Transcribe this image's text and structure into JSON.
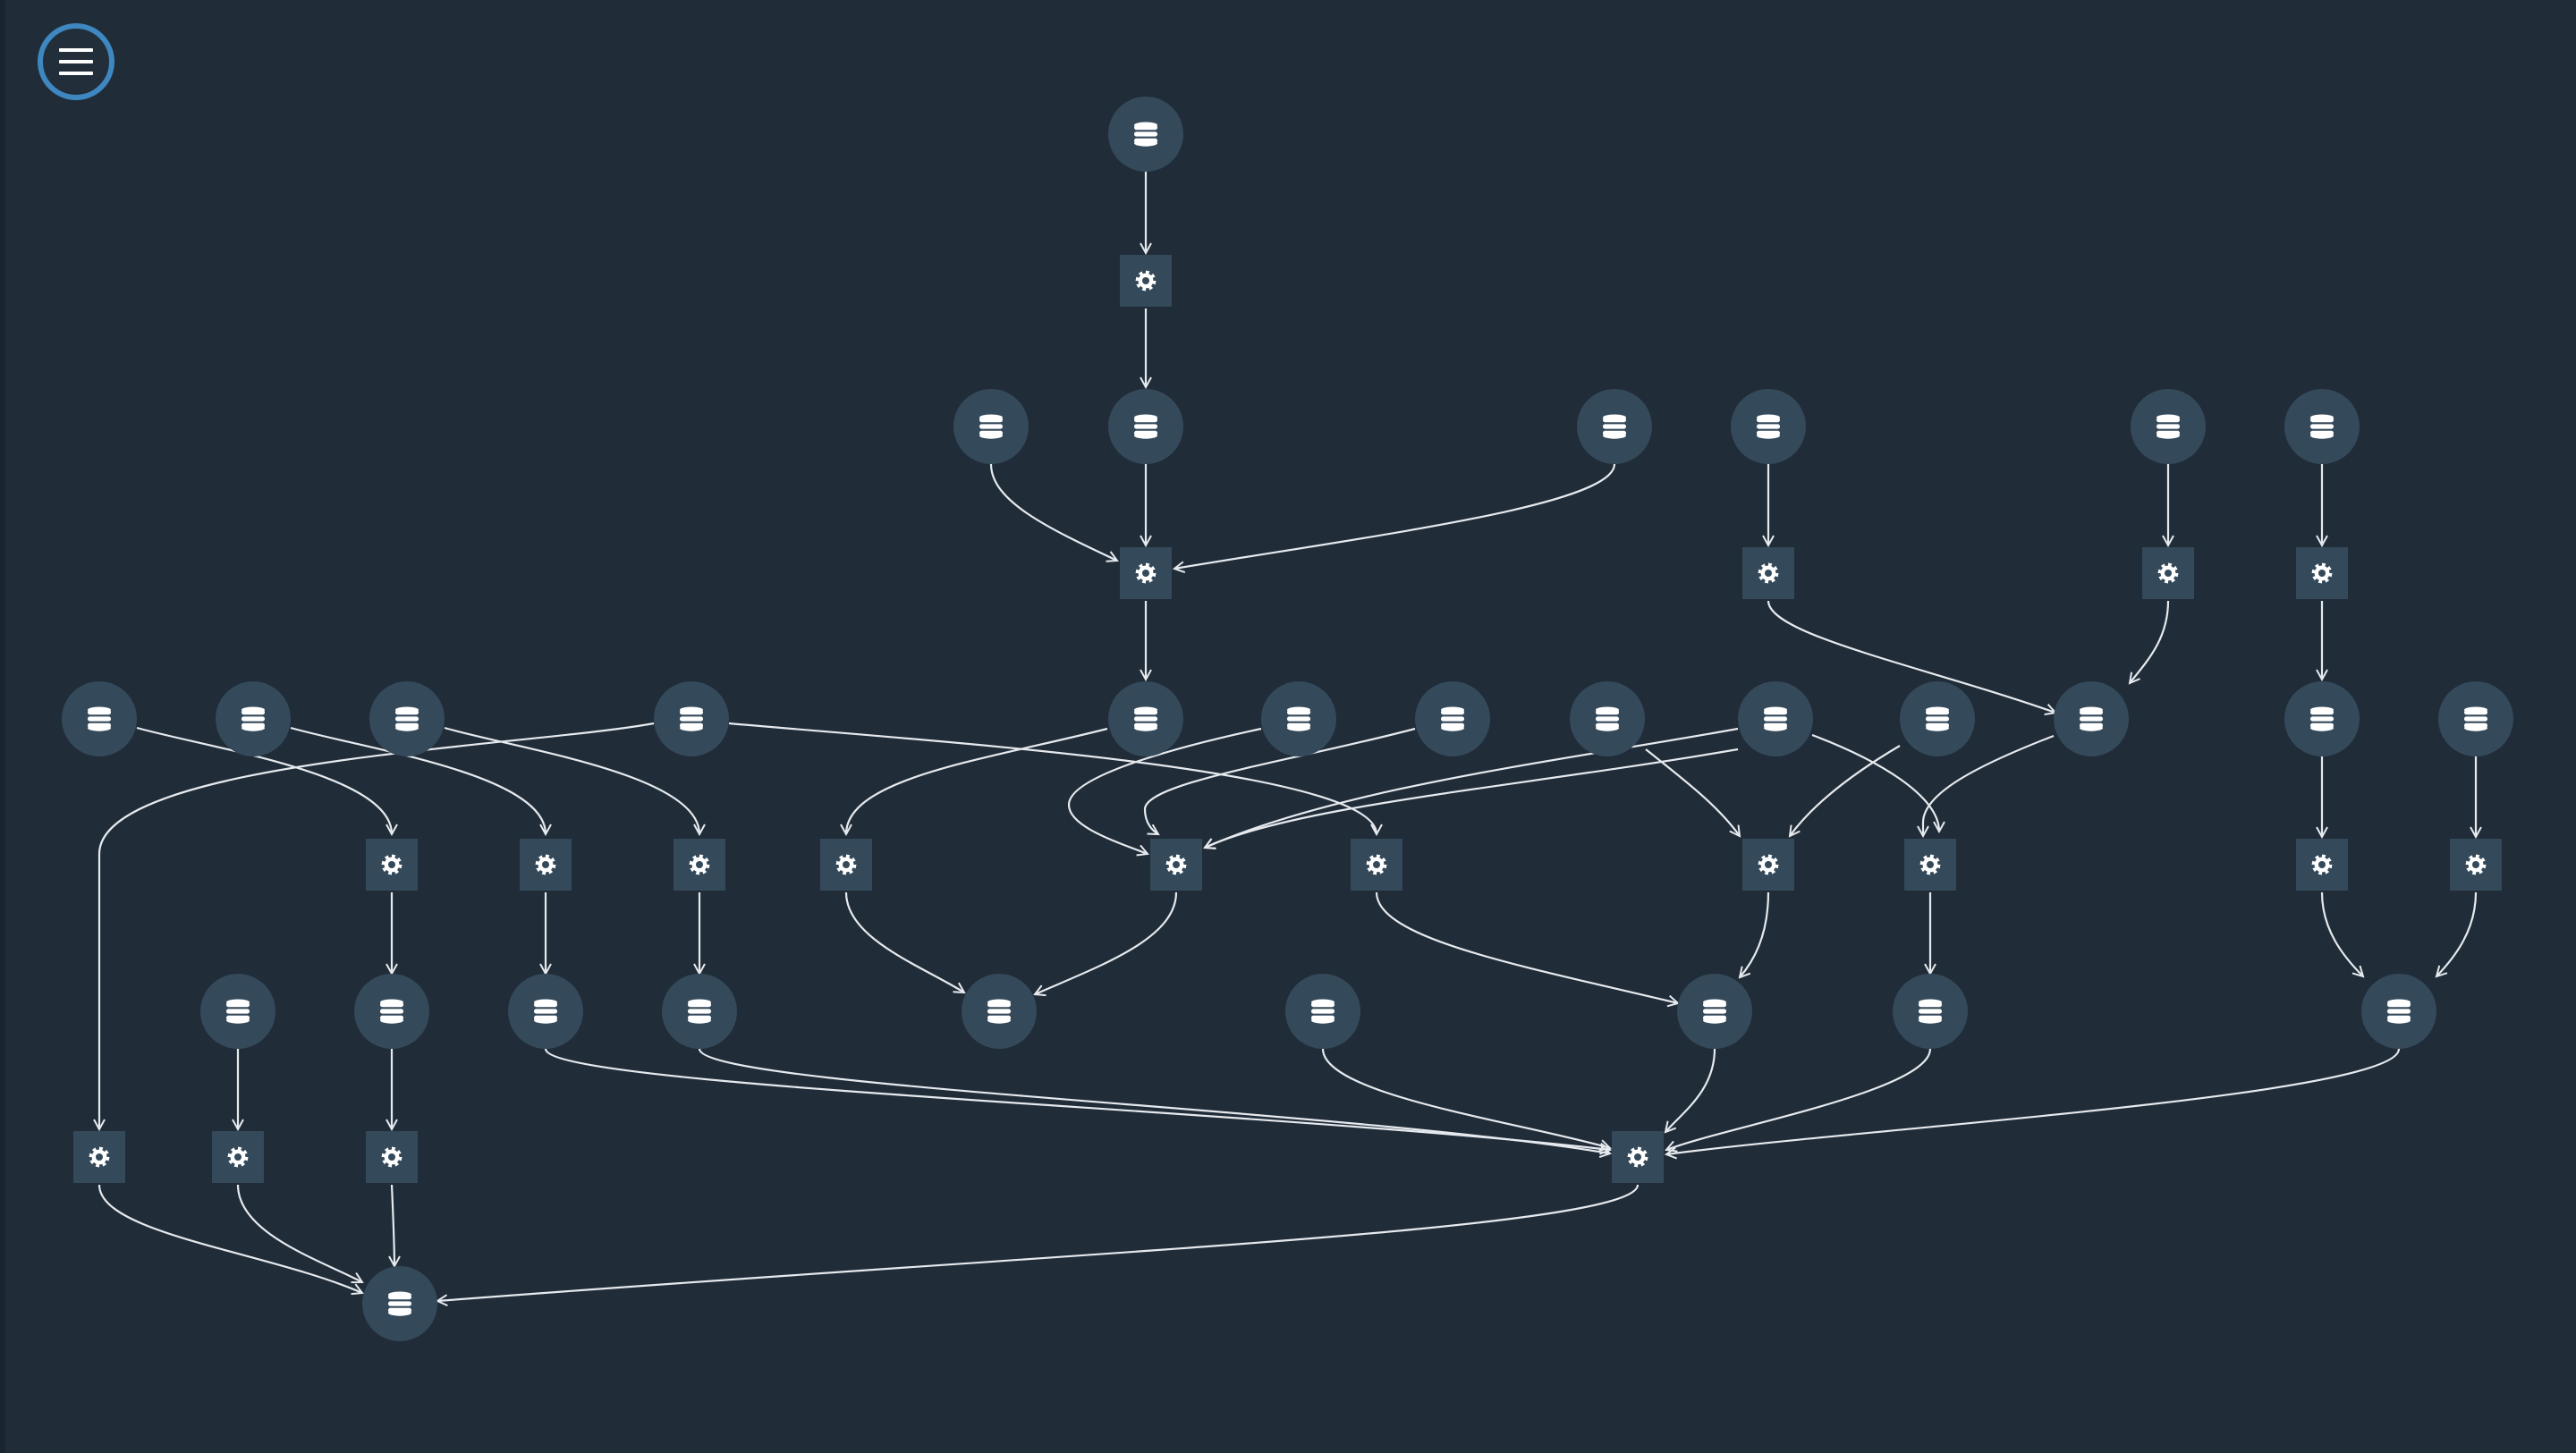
{
  "toolbar": {
    "menu_icon": "hamburger-menu-icon",
    "accent_color": "#3f87c0"
  },
  "graph": {
    "background_color": "#202c38",
    "node_fill_color": "#34495a",
    "edge_color": "#e6eaee",
    "icon_color": "#ffffff",
    "dataset_icon": "database-icon",
    "job_icon": "gear-icon",
    "datasets": [
      {
        "id": "d0"
      },
      {
        "id": "d1"
      },
      {
        "id": "d2"
      },
      {
        "id": "d3"
      },
      {
        "id": "d4"
      },
      {
        "id": "d5"
      },
      {
        "id": "d6"
      },
      {
        "id": "d7"
      },
      {
        "id": "d8"
      },
      {
        "id": "d9"
      },
      {
        "id": "d10"
      },
      {
        "id": "d11"
      },
      {
        "id": "d12"
      },
      {
        "id": "d13"
      },
      {
        "id": "d14"
      },
      {
        "id": "d15"
      },
      {
        "id": "d16"
      },
      {
        "id": "d17"
      },
      {
        "id": "d18"
      },
      {
        "id": "d19"
      },
      {
        "id": "d20"
      },
      {
        "id": "d21"
      },
      {
        "id": "d22"
      },
      {
        "id": "d23"
      },
      {
        "id": "d24"
      },
      {
        "id": "d25"
      },
      {
        "id": "d26"
      },
      {
        "id": "d27"
      },
      {
        "id": "d28"
      },
      {
        "id": "d29"
      },
      {
        "id": "d30"
      },
      {
        "id": "d31"
      },
      {
        "id": "d32"
      }
    ],
    "jobs": [
      {
        "id": "j0"
      },
      {
        "id": "j1"
      },
      {
        "id": "j2"
      },
      {
        "id": "j3"
      },
      {
        "id": "j4"
      },
      {
        "id": "j5"
      },
      {
        "id": "j6"
      },
      {
        "id": "j7"
      },
      {
        "id": "j8"
      },
      {
        "id": "j9"
      },
      {
        "id": "j10"
      },
      {
        "id": "j11"
      },
      {
        "id": "j12"
      },
      {
        "id": "j13"
      },
      {
        "id": "j14"
      },
      {
        "id": "j15"
      },
      {
        "id": "j16"
      },
      {
        "id": "j17"
      },
      {
        "id": "j18"
      },
      {
        "id": "j19"
      },
      {
        "id": "j20"
      },
      {
        "id": "j21"
      }
    ],
    "edges": [
      [
        "d0",
        "j0"
      ],
      [
        "j0",
        "d1"
      ],
      [
        "d2",
        "j1"
      ],
      [
        "d1",
        "j1"
      ],
      [
        "d3",
        "j1"
      ],
      [
        "j1",
        "d11"
      ],
      [
        "d4",
        "j2"
      ],
      [
        "d5",
        "j3"
      ],
      [
        "d6",
        "j4"
      ],
      [
        "j2",
        "d17"
      ],
      [
        "j3",
        "d18"
      ],
      [
        "j4",
        "d21"
      ],
      [
        "d7",
        "j5"
      ],
      [
        "d8",
        "j6"
      ],
      [
        "d9",
        "j7"
      ],
      [
        "d10",
        "j8"
      ],
      [
        "d11",
        "j9"
      ],
      [
        "d12",
        "j10"
      ],
      [
        "d13",
        "j10"
      ],
      [
        "d14",
        "j10"
      ],
      [
        "d15",
        "j10"
      ],
      [
        "d10",
        "j11"
      ],
      [
        "d15",
        "j12"
      ],
      [
        "d16",
        "j12"
      ],
      [
        "d17",
        "j13"
      ],
      [
        "d17",
        "j12"
      ],
      [
        "d18",
        "j13"
      ],
      [
        "d19",
        "j14"
      ],
      [
        "d20",
        "j15"
      ],
      [
        "j5",
        "d26"
      ],
      [
        "j6",
        "d27"
      ],
      [
        "j7",
        "d28"
      ],
      [
        "j9",
        "d29"
      ],
      [
        "j10",
        "d29"
      ],
      [
        "j11",
        "d31"
      ],
      [
        "j12",
        "d31"
      ],
      [
        "j13",
        "d32"
      ],
      [
        "j14",
        "d24"
      ],
      [
        "j15",
        "d24"
      ],
      [
        "d22",
        "j16"
      ],
      [
        "d26",
        "j17"
      ],
      [
        "d27",
        "j18"
      ],
      [
        "d28",
        "j21"
      ],
      [
        "d30",
        "j21"
      ],
      [
        "d31",
        "j21"
      ],
      [
        "d32",
        "j21"
      ],
      [
        "d24",
        "j21"
      ],
      [
        "j16",
        "d25"
      ],
      [
        "j17",
        "d25"
      ],
      [
        "j18",
        "d25"
      ],
      [
        "j21",
        "d25"
      ]
    ]
  }
}
